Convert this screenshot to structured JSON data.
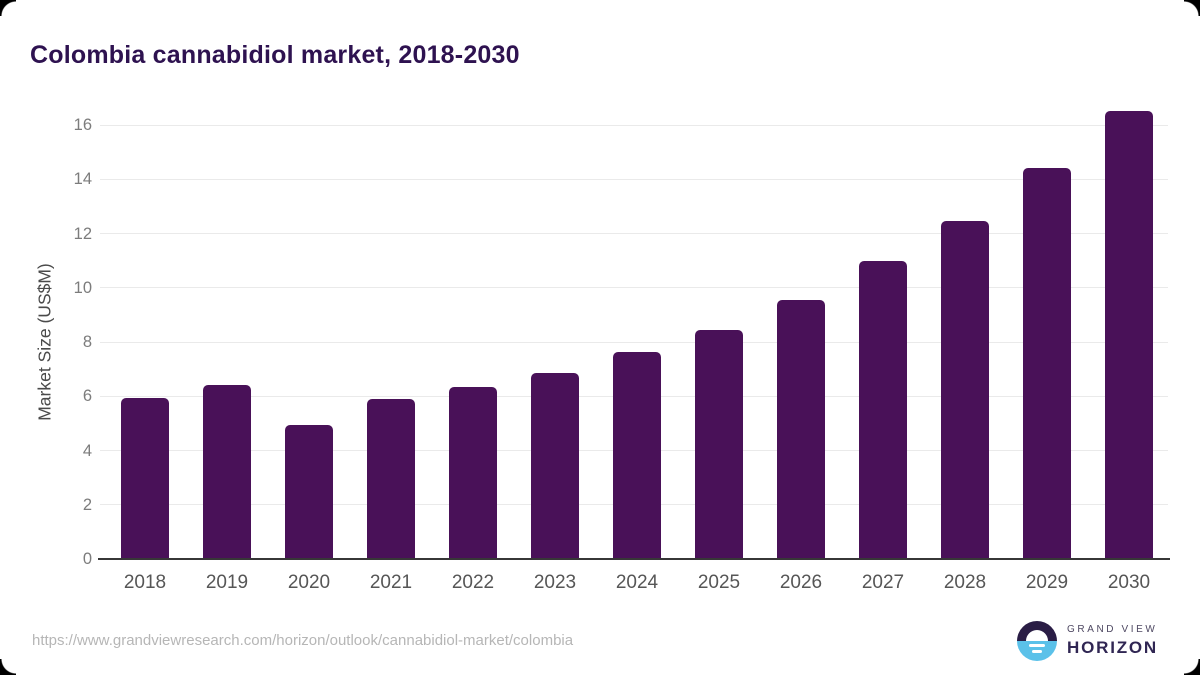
{
  "title": "Colombia cannabidiol market, 2018-2030",
  "chart_data": {
    "type": "bar",
    "title": "Colombia cannabidiol market, 2018-2030",
    "categories": [
      "2018",
      "2019",
      "2020",
      "2021",
      "2022",
      "2023",
      "2024",
      "2025",
      "2026",
      "2027",
      "2028",
      "2029",
      "2030"
    ],
    "values": [
      5.95,
      6.4,
      4.95,
      5.9,
      6.35,
      6.85,
      7.65,
      8.45,
      9.55,
      11.0,
      12.45,
      14.4,
      16.5
    ],
    "xlabel": "",
    "ylabel": "Market Size (US$M)",
    "ylim": [
      0,
      16
    ],
    "yticks": [
      0,
      2,
      4,
      6,
      8,
      10,
      12,
      14,
      16
    ],
    "grid": "horizontal",
    "legend": "none",
    "bar_color": "#491158"
  },
  "colors": {
    "bar": "#491158",
    "title": "#2e1250",
    "gridline": "#eaeaea",
    "axis_line": "#373737",
    "y_tick_label": "#7c7c7c",
    "x_tick_label": "#565656",
    "url_text": "#b6b6b6",
    "logo_top": "#2a1d45",
    "logo_bottom": "#5bc1e9",
    "logo_text": "#302653"
  },
  "footer": {
    "source_url": "https://www.grandviewresearch.com/horizon/outlook/cannabidiol-market/colombia",
    "logo": {
      "line1": "GRAND VIEW",
      "line2": "HORIZON"
    }
  }
}
